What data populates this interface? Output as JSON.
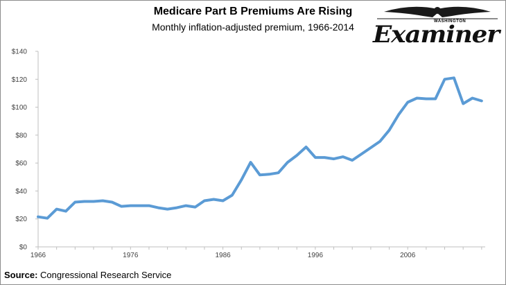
{
  "branding": {
    "logo_top": "WASHINGTON",
    "logo_name": "Examiner"
  },
  "source": {
    "label": "Source:",
    "text": "Congressional Research Service"
  },
  "chart_data": {
    "type": "line",
    "title": "Medicare Part B Premiums Are Rising",
    "subtitle": "Monthly inflation-adjusted premium, 1966-2014",
    "xlabel": "",
    "ylabel": "",
    "xlim": [
      1966,
      2014
    ],
    "ylim": [
      0,
      140
    ],
    "grid": false,
    "legend": "none",
    "line_color": "#5b9bd5",
    "y_ticks": [
      0,
      20,
      40,
      60,
      80,
      100,
      120,
      140
    ],
    "y_tick_labels": [
      "$0",
      "$20",
      "$40",
      "$60",
      "$80",
      "$100",
      "$120",
      "$140"
    ],
    "x_ticks": [
      1966,
      1976,
      1986,
      1996,
      2006
    ],
    "x_tick_labels": [
      "1966",
      "1976",
      "1986",
      "1996",
      "2006"
    ],
    "series": [
      {
        "name": "Monthly inflation-adjusted premium",
        "x": [
          1966,
          1967,
          1968,
          1969,
          1970,
          1971,
          1972,
          1973,
          1974,
          1975,
          1976,
          1977,
          1978,
          1979,
          1980,
          1981,
          1982,
          1983,
          1984,
          1985,
          1986,
          1987,
          1988,
          1989,
          1990,
          1991,
          1992,
          1993,
          1994,
          1995,
          1996,
          1997,
          1998,
          1999,
          2000,
          2001,
          2002,
          2003,
          2004,
          2005,
          2006,
          2007,
          2008,
          2009,
          2010,
          2011,
          2012,
          2013,
          2014
        ],
        "values": [
          21.5,
          20.5,
          27,
          25.5,
          32,
          32.5,
          32.5,
          33,
          32,
          29,
          29.5,
          29.5,
          29.5,
          28,
          27,
          28,
          29.5,
          28.5,
          33,
          34,
          33,
          37,
          48,
          60.5,
          51.5,
          52,
          53,
          60.5,
          65.5,
          71.5,
          64,
          64,
          63,
          64.5,
          62,
          66.5,
          71,
          75.5,
          83.5,
          94.5,
          103.5,
          106.5,
          106,
          106,
          120,
          121,
          102.5,
          106.5,
          104.5
        ]
      }
    ]
  }
}
